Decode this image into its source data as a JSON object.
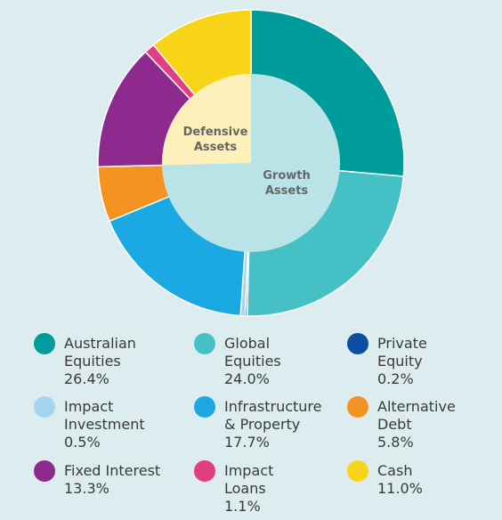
{
  "chart_data": {
    "type": "donut",
    "categories": [
      "Australian Equities",
      "Global Equities",
      "Private Equity",
      "Impact Investment",
      "Infrastructure & Property",
      "Alternative Debt",
      "Fixed Interest",
      "Impact Loans",
      "Cash"
    ],
    "values": [
      26.4,
      24.0,
      0.2,
      0.5,
      17.7,
      5.8,
      13.3,
      1.1,
      11.0
    ],
    "value_labels": [
      "26.4%",
      "24.0%",
      "0.2%",
      "0.5%",
      "17.7%",
      "5.8%",
      "13.3%",
      "1.1%",
      "11.0%"
    ],
    "colors": [
      "#009b9b",
      "#45c1c6",
      "#0a4ea3",
      "#a6d3f0",
      "#1aa9e2",
      "#f39322",
      "#8e2a8e",
      "#e23f83",
      "#f7d417"
    ],
    "inner": {
      "categories": [
        "Growth Assets",
        "Defensive Assets"
      ],
      "values": [
        74.6,
        25.4
      ],
      "colors": [
        "#b9e3e6",
        "#fdf0bb"
      ]
    }
  }
}
